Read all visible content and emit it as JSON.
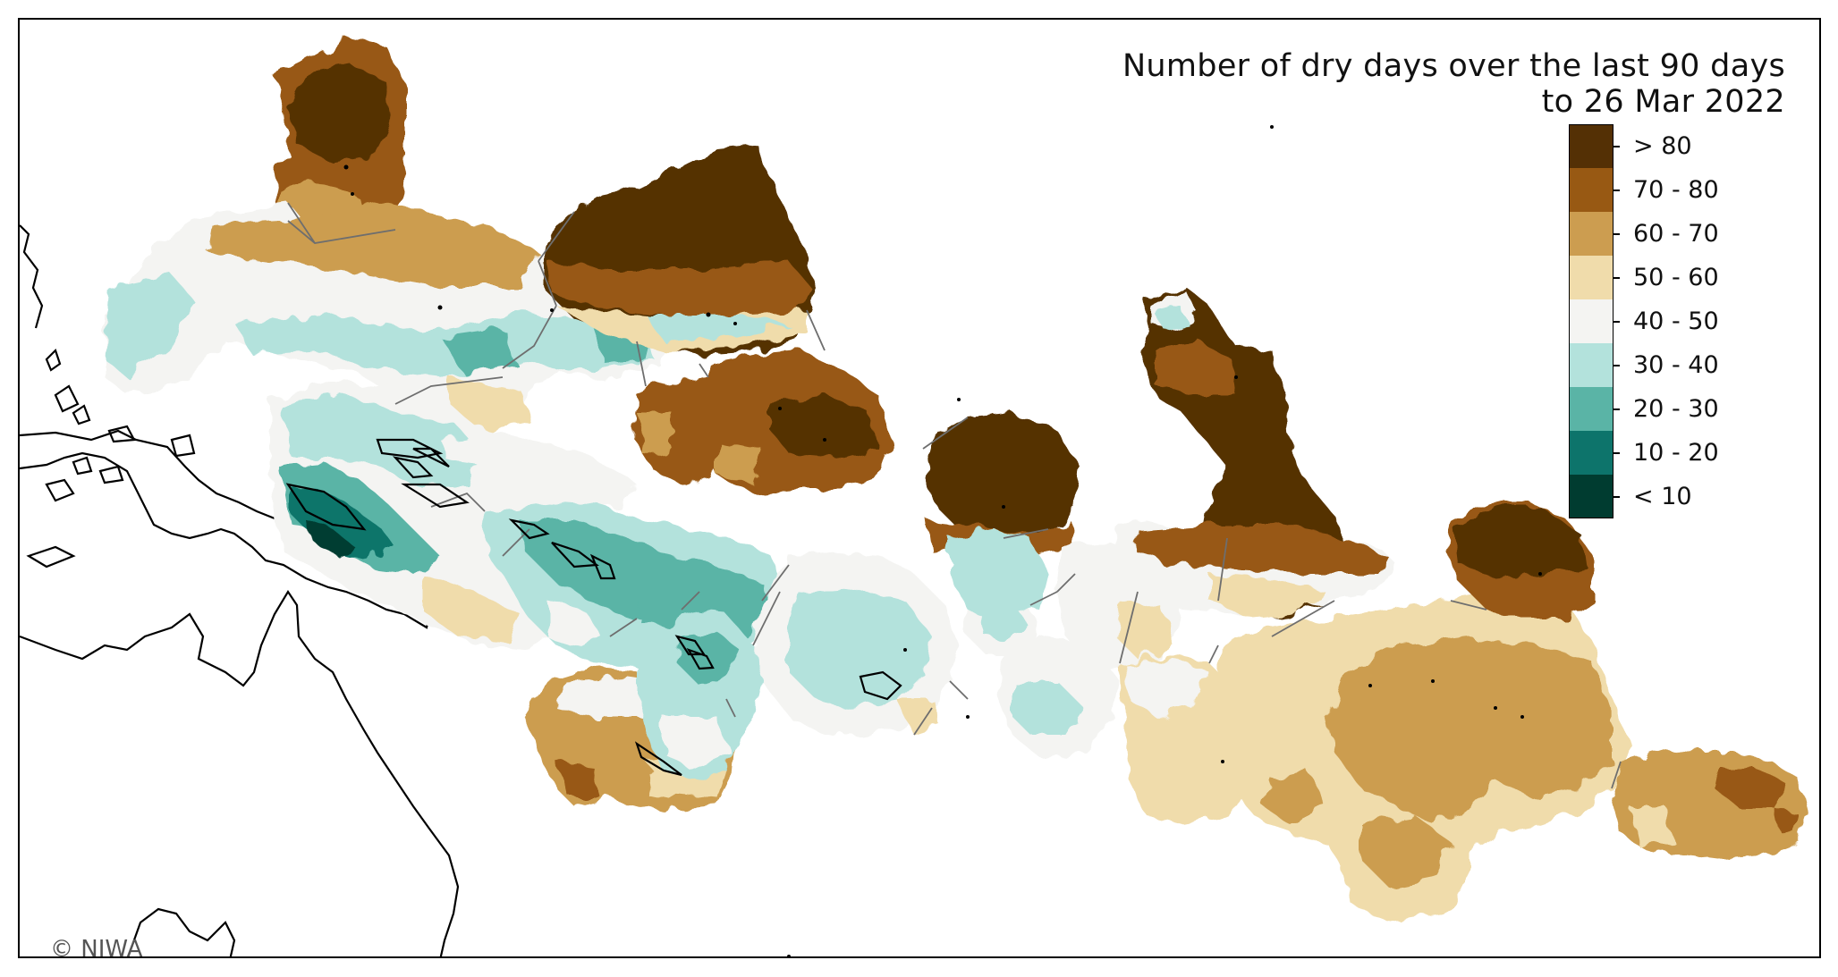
{
  "title": {
    "line1": "Number of dry days over the last 90 days",
    "line2": "to 26 Mar 2022"
  },
  "legend": {
    "items": [
      {
        "label": "> 80",
        "color": "#543005"
      },
      {
        "label": "70 - 80",
        "color": "#985913"
      },
      {
        "label": "60 - 70",
        "color": "#cc9d50"
      },
      {
        "label": "50 - 60",
        "color": "#f0dcab"
      },
      {
        "label": "40 - 50",
        "color": "#f4f4f2"
      },
      {
        "label": "30 - 40",
        "color": "#b3e2dc"
      },
      {
        "label": "20 - 30",
        "color": "#5ab4a6"
      },
      {
        "label": "10 - 20",
        "color": "#0d746b"
      },
      {
        "label": "< 10",
        "color": "#003c30"
      }
    ]
  },
  "credit": "© NIWA"
}
